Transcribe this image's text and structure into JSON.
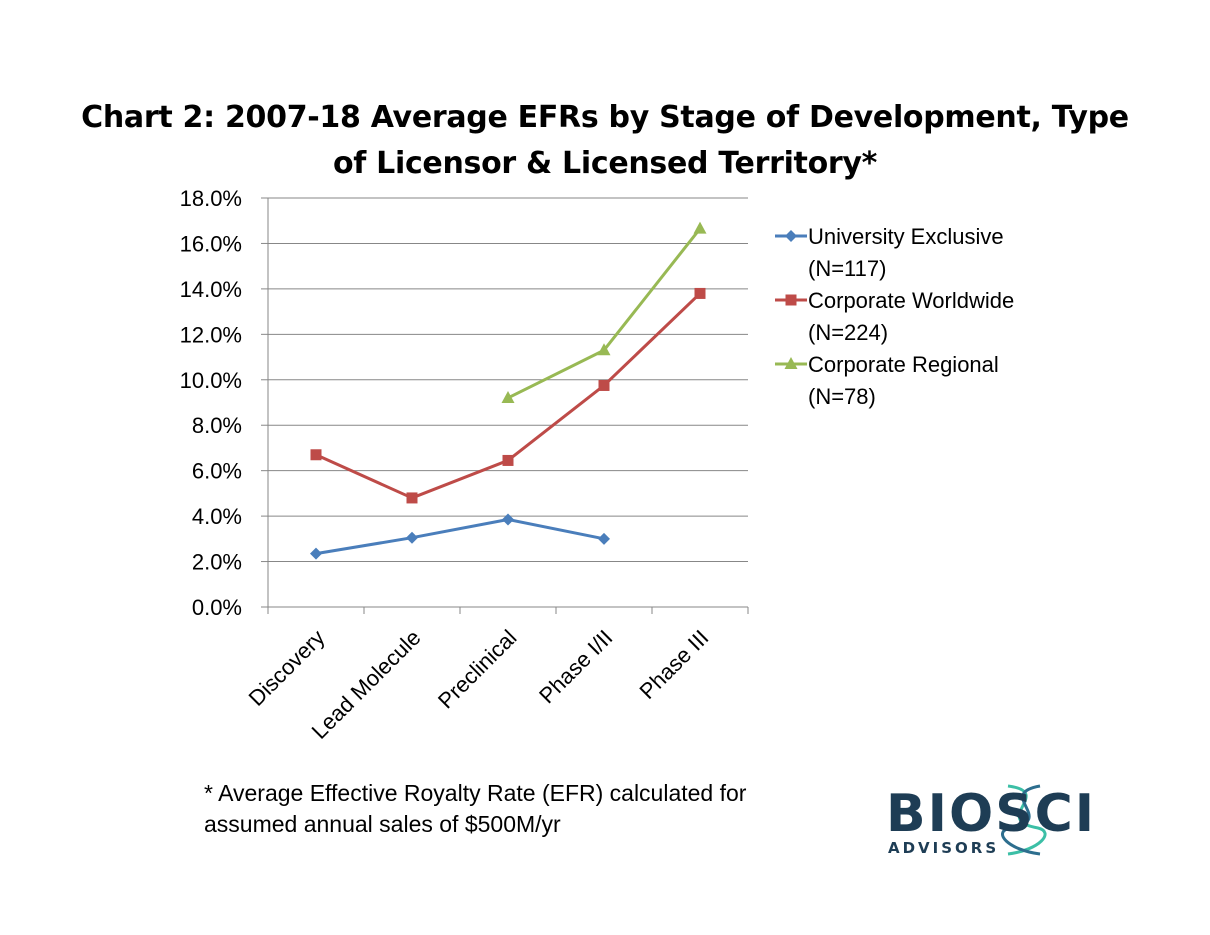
{
  "chart_data": {
    "type": "line",
    "title_lines": [
      "Chart 2:  2007-18 Average EFRs by Stage of Development, Type",
      "of Licensor & Licensed Territory*"
    ],
    "categories": [
      "Discovery",
      "Lead Molecule",
      "Preclinical",
      "Phase I/II",
      "Phase III"
    ],
    "ylim": [
      0,
      18
    ],
    "y_ticks": [
      0,
      2,
      4,
      6,
      8,
      10,
      12,
      14,
      16,
      18
    ],
    "y_tick_labels": [
      "0.0%",
      "2.0%",
      "4.0%",
      "6.0%",
      "8.0%",
      "10.0%",
      "12.0%",
      "14.0%",
      "16.0%",
      "18.0%"
    ],
    "grid": true,
    "legend_position": "right",
    "series": [
      {
        "name_lines": [
          "University Exclusive",
          "(N=117)"
        ],
        "color": "#4a7ebb",
        "marker": "diamond",
        "values": [
          2.35,
          3.05,
          3.85,
          3.0,
          null
        ]
      },
      {
        "name_lines": [
          "Corporate Worldwide",
          "(N=224)"
        ],
        "color": "#be4b48",
        "marker": "square",
        "values": [
          6.7,
          4.8,
          6.45,
          9.75,
          13.8
        ]
      },
      {
        "name_lines": [
          "Corporate Regional",
          "(N=78)"
        ],
        "color": "#98b954",
        "marker": "triangle",
        "values": [
          null,
          null,
          9.2,
          11.3,
          16.65
        ]
      }
    ]
  },
  "footnote_lines": [
    "* Average Effective Royalty Rate (EFR) calculated for",
    "assumed annual sales of $500M/yr"
  ],
  "logo": {
    "main_text": "BIOSCI",
    "sub_text": "ADVISORS",
    "color": "#1e3d55",
    "accent_color": "#3cbfa6"
  }
}
